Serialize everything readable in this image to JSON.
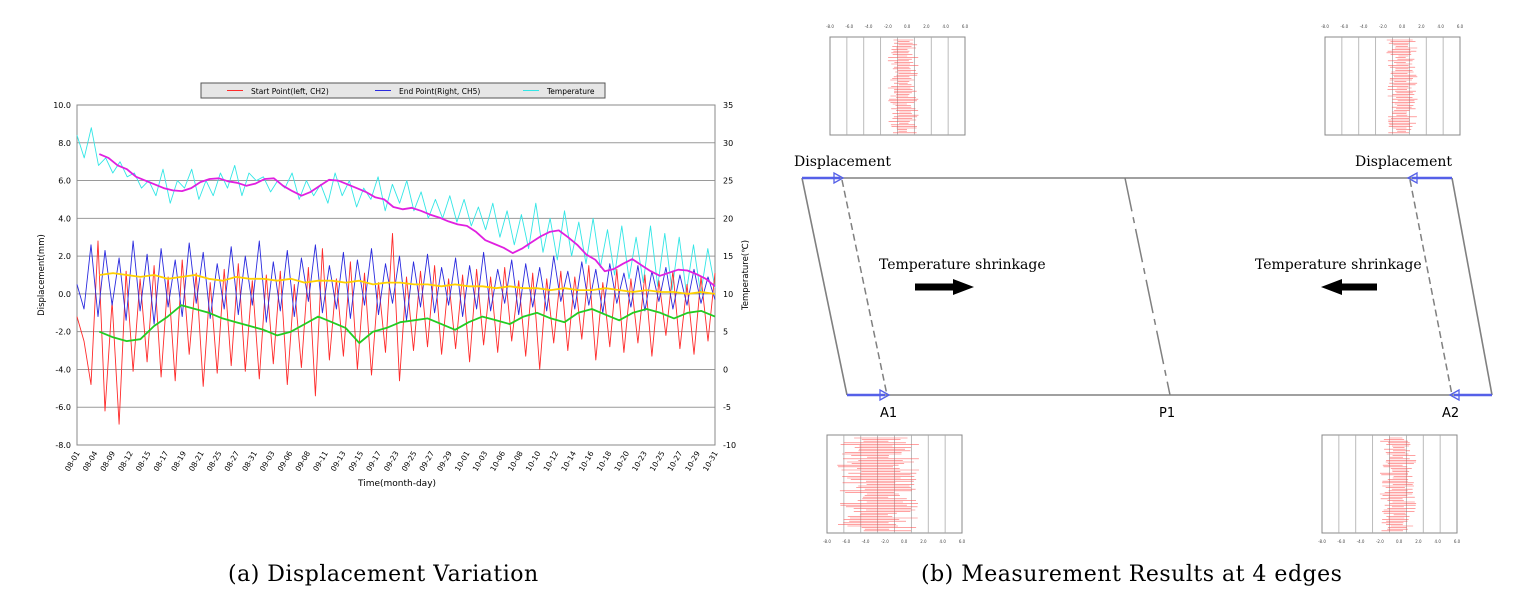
{
  "captions": {
    "a": "(a) Displacement Variation",
    "b": "(b) Measurement Results at 4 edges"
  },
  "chart_data": [
    {
      "type": "line",
      "legend_placement": "top-center",
      "grid": true,
      "xlabel": "Time(month-day)",
      "ylabel": "Displacement(mm)",
      "y2label": "Temperature(℃)",
      "ylim": [
        -8,
        10
      ],
      "y2lim": [
        -10,
        35
      ],
      "yticks": [
        "10.0",
        "8.0",
        "6.0",
        "4.0",
        "2.0",
        "0.0",
        "-2.0",
        "-4.0",
        "-6.0",
        "-8.0"
      ],
      "y2ticks": [
        "35",
        "30",
        "25",
        "20",
        "15",
        "10",
        "5",
        "0",
        "-5",
        "-10"
      ],
      "xticks": [
        "08-01",
        "08-04",
        "08-09",
        "08-12",
        "08-15",
        "08-17",
        "08-19",
        "08-21",
        "08-25",
        "08-27",
        "08-31",
        "09-03",
        "09-06",
        "09-08",
        "09-11",
        "09-13",
        "09-15",
        "09-17",
        "09-23",
        "09-25",
        "09-27",
        "09-29",
        "10-01",
        "10-03",
        "10-06",
        "10-08",
        "10-10",
        "10-12",
        "10-14",
        "10-16",
        "10-18",
        "10-20",
        "10-23",
        "10-25",
        "10-27",
        "10-29",
        "10-31"
      ],
      "series": [
        {
          "name": "Start Point(left, CH2)",
          "color": "#ff2b2b",
          "axis": "left",
          "values": [
            -1.2,
            -2.5,
            -4.8,
            2.8,
            -6.2,
            -0.4,
            -6.9,
            1.2,
            -4.1,
            0.8,
            -3.6,
            1.5,
            -4.4,
            0.9,
            -4.6,
            1.8,
            -3.2,
            1.1,
            -4.9,
            0.6,
            -4.2,
            1.3,
            -3.8,
            1.6,
            -4.1,
            0.7,
            -4.5,
            1.0,
            -3.7,
            1.2,
            -4.8,
            0.5,
            -3.9,
            1.4,
            -5.4,
            2.4,
            -3.5,
            0.8,
            -3.3,
            1.7,
            -4.0,
            1.1,
            -4.3,
            0.6,
            -3.1,
            3.2,
            -4.6,
            0.9,
            -3.0,
            1.2,
            -2.8,
            1.5,
            -3.2,
            0.8,
            -2.9,
            1.0,
            -3.6,
            1.3,
            -2.7,
            0.9,
            -3.1,
            1.4,
            -2.5,
            0.7,
            -3.3,
            1.1,
            -4.0,
            0.8,
            -2.6,
            1.2,
            -3.0,
            0.9,
            -2.4,
            1.5,
            -3.5,
            0.6,
            -2.8,
            1.3,
            -3.1,
            0.8,
            -2.6,
            1.0,
            -3.3,
            0.7,
            -2.2,
            1.2,
            -2.9,
            0.5,
            -3.2,
            0.9,
            -2.5,
            1.1
          ]
        },
        {
          "name": "End Point(Right, CH5)",
          "color": "#2b2bdf",
          "axis": "left",
          "values": [
            0.5,
            -0.8,
            2.6,
            -1.2,
            2.3,
            -0.6,
            1.9,
            -1.4,
            2.8,
            -0.9,
            2.1,
            -1.6,
            2.4,
            -0.7,
            1.8,
            -1.2,
            2.7,
            -0.5,
            2.2,
            -1.3,
            1.6,
            -0.8,
            2.5,
            -1.1,
            2.0,
            -0.6,
            2.8,
            -1.5,
            1.7,
            -0.9,
            2.3,
            -1.2,
            1.9,
            -0.4,
            2.6,
            -1.0,
            1.5,
            -0.8,
            2.2,
            -1.3,
            1.8,
            -0.6,
            2.4,
            -1.1,
            1.6,
            -0.5,
            2.0,
            -1.4,
            1.7,
            -0.7,
            2.1,
            -1.0,
            1.4,
            -0.6,
            1.9,
            -1.2,
            1.5,
            -0.8,
            2.2,
            -0.9,
            1.3,
            -0.5,
            1.8,
            -1.1,
            1.6,
            -0.7,
            1.4,
            -0.9,
            2.0,
            -0.4,
            1.2,
            -0.8,
            1.7,
            -0.6,
            1.3,
            -1.0,
            1.6,
            -0.5,
            1.1,
            -0.7,
            1.5,
            -0.9,
            1.2,
            -0.4,
            1.4,
            -0.8,
            1.0,
            -0.6,
            1.3,
            -0.5,
            0.9,
            -0.3
          ]
        },
        {
          "name": "Temperature",
          "color": "#33e6e6",
          "axis": "right",
          "values": [
            31,
            28,
            32,
            27,
            28,
            26,
            27.5,
            25.5,
            26,
            24,
            25,
            23,
            26.5,
            22,
            25,
            24,
            26.5,
            22.5,
            25,
            23,
            26,
            24,
            27,
            23,
            26,
            25,
            25.5,
            23.5,
            25,
            24,
            26,
            22.5,
            25,
            23,
            24.5,
            22,
            26,
            23,
            25,
            21.5,
            24,
            22.5,
            25.5,
            21,
            24.5,
            22,
            25,
            21,
            23.5,
            20,
            22.5,
            20,
            23,
            19.5,
            22.5,
            19,
            21.5,
            18.5,
            22,
            17.5,
            21,
            16.5,
            20.5,
            16,
            22,
            15.5,
            20,
            14.5,
            21,
            15,
            19.5,
            14,
            20,
            13.5,
            18.5,
            12.5,
            19,
            12,
            17.5,
            11.5,
            19,
            11,
            18,
            10.5,
            17.5,
            10.2,
            16.5,
            10,
            16,
            10.8
          ]
        },
        {
          "color": "#ffd000",
          "axis": "left",
          "values": [
            1.0,
            1.1,
            1.0,
            0.9,
            1.0,
            0.8,
            0.9,
            1.0,
            0.8,
            0.7,
            0.9,
            0.8,
            0.8,
            0.7,
            0.8,
            0.6,
            0.7,
            0.7,
            0.6,
            0.7,
            0.5,
            0.6,
            0.6,
            0.5,
            0.5,
            0.4,
            0.5,
            0.4,
            0.4,
            0.3,
            0.4,
            0.3,
            0.3,
            0.2,
            0.3,
            0.2,
            0.2,
            0.3,
            0.2,
            0.1,
            0.2,
            0.1,
            0.1,
            0.0,
            0.1,
            0.0
          ]
        },
        {
          "color": "#22cc22",
          "axis": "left",
          "values": [
            -2.0,
            -2.3,
            -2.5,
            -2.4,
            -1.7,
            -1.2,
            -0.6,
            -0.8,
            -1.0,
            -1.3,
            -1.5,
            -1.7,
            -1.9,
            -2.2,
            -2.0,
            -1.6,
            -1.2,
            -1.5,
            -1.8,
            -2.6,
            -2.0,
            -1.8,
            -1.5,
            -1.4,
            -1.3,
            -1.6,
            -1.9,
            -1.5,
            -1.2,
            -1.4,
            -1.6,
            -1.2,
            -1.0,
            -1.3,
            -1.5,
            -1.0,
            -0.8,
            -1.1,
            -1.4,
            -1.0,
            -0.8,
            -1.0,
            -1.3,
            -1.0,
            -0.9,
            -1.2
          ]
        },
        {
          "color": "#e020e0",
          "axis": "right",
          "values": [
            28.5,
            28,
            27,
            26.5,
            25.5,
            25,
            24.5,
            24,
            23.7,
            23.6,
            24,
            24.8,
            25.2,
            25.3,
            24.9,
            24.7,
            24.3,
            24.6,
            25.2,
            25.3,
            24.3,
            23.6,
            23,
            23.5,
            24.3,
            25.1,
            25,
            24.5,
            24,
            23.5,
            22.8,
            22.5,
            21.5,
            21.2,
            21.4,
            21,
            20.5,
            20.1,
            19.6,
            19.2,
            19,
            18.2,
            17.1,
            16.6,
            16.1,
            15.4,
            16,
            16.8,
            17.6,
            18.2,
            18.4,
            17.5,
            16.5,
            15.2,
            14.5,
            13,
            13.3,
            14,
            14.6,
            13.8,
            13,
            12.4,
            12.8,
            13.2,
            13.1,
            12.6,
            12,
            11
          ]
        }
      ]
    },
    {
      "type": "diagram",
      "labels": {
        "displacement_left": "Displacement",
        "displacement_right": "Displacement",
        "shrink_left": "Temperature shrinkage",
        "shrink_right": "Temperature shrinkage",
        "a1": "A1",
        "p1": "P1",
        "a2": "A2"
      },
      "inset_ticks": [
        "-8.0",
        "-6.0",
        "-4.0",
        "-2.0",
        "0.0",
        "2.0",
        "4.0",
        "6.0"
      ]
    }
  ],
  "colors": {
    "frame": "#808080",
    "arrow_blue": "#5560e8",
    "spike_red": "#ff4d4d"
  }
}
